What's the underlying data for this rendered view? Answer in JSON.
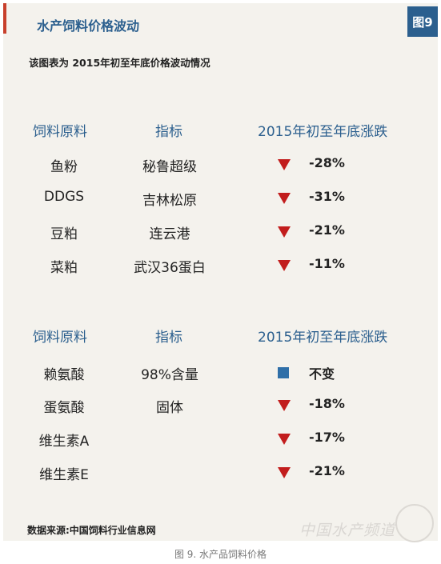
{
  "card": {
    "title": "水产饲料价格波动",
    "figure_badge": "图9",
    "subtitle": "该图表为 2015年初至年底价格波动情况",
    "source": "数据来源:中国饲料行业信息网",
    "watermark": "中国水产频道"
  },
  "caption": "图 9. 水产品饲料价格",
  "colors": {
    "accent_blue": "#2b5f8e",
    "down_red": "#c21d1d",
    "unchanged_blue": "#2f6fa8"
  },
  "chart_data": {
    "type": "table",
    "tables": [
      {
        "headers": [
          "饲料原料",
          "指标",
          "2015年初至年底涨跌"
        ],
        "rows": [
          {
            "material": "鱼粉",
            "indicator": "秘鲁超级",
            "marker": "down",
            "change": "-28%"
          },
          {
            "material": "DDGS",
            "indicator": "吉林松原",
            "marker": "down",
            "change": "-31%"
          },
          {
            "material": "豆粕",
            "indicator": "连云港",
            "marker": "down",
            "change": "-21%"
          },
          {
            "material": "菜粕",
            "indicator": "武汉36蛋白",
            "marker": "down",
            "change": "-11%"
          }
        ]
      },
      {
        "headers": [
          "饲料原料",
          "指标",
          "2015年初至年底涨跌"
        ],
        "rows": [
          {
            "material": "赖氨酸",
            "indicator": "98%含量",
            "marker": "unchanged",
            "change": "不变"
          },
          {
            "material": "蛋氨酸",
            "indicator": "固体",
            "marker": "down",
            "change": "-18%"
          },
          {
            "material": "维生素A",
            "indicator": "",
            "marker": "down",
            "change": "-17%"
          },
          {
            "material": "维生素E",
            "indicator": "",
            "marker": "down",
            "change": "-21%"
          }
        ]
      }
    ]
  }
}
